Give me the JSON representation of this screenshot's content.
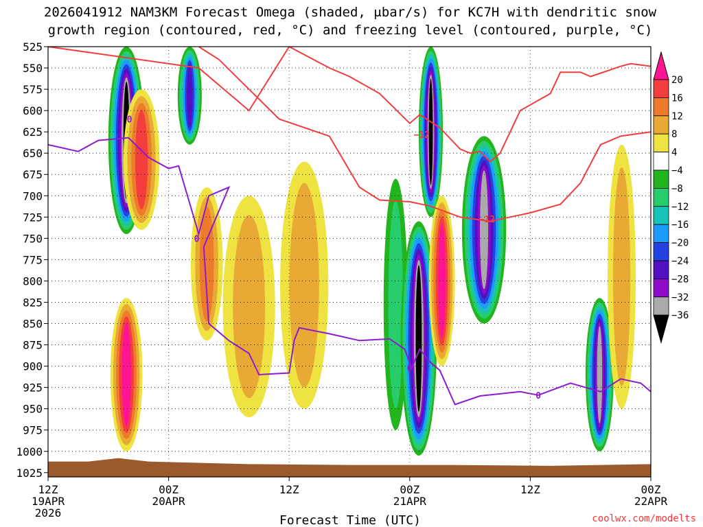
{
  "title_line1": "2026041912 NAM3KM Forecast Omega (shaded, μbar/s) for KC7H with dendritic snow",
  "title_line2": "growth region (contoured, red, °C) and freezing level (contoured, purple, °C)",
  "credit": "coolwx.com/modelts",
  "chart_data": {
    "type": "heatmap",
    "title": "2026041912 NAM3KM Forecast Omega (shaded, μbar/s) for KC7H with dendritic snow growth region (contoured, red, °C) and freezing level (contoured, purple, °C)",
    "xlabel": "Forecast Time (UTC)",
    "ylabel": "",
    "x_range_hours": [
      0,
      60
    ],
    "y_range_mb": [
      525,
      1030
    ],
    "y_scale": "pressure (inverted)",
    "grid": true,
    "x_ticks": [
      {
        "hour": 0,
        "lines": [
          "12Z",
          "19APR",
          "2026"
        ]
      },
      {
        "hour": 12,
        "lines": [
          "00Z",
          "20APR"
        ]
      },
      {
        "hour": 24,
        "lines": [
          "12Z"
        ]
      },
      {
        "hour": 36,
        "lines": [
          "00Z",
          "21APR"
        ]
      },
      {
        "hour": 48,
        "lines": [
          "12Z"
        ]
      },
      {
        "hour": 60,
        "lines": [
          "00Z",
          "22APR"
        ]
      }
    ],
    "y_ticks": [
      525,
      550,
      575,
      600,
      625,
      650,
      675,
      700,
      725,
      750,
      775,
      800,
      825,
      850,
      875,
      900,
      925,
      950,
      975,
      1000,
      1025
    ],
    "colorbar": {
      "labels": [
        "20",
        "16",
        "12",
        "8",
        "4",
        "−4",
        "−8",
        "−12",
        "−16",
        "−20",
        "−24",
        "−28",
        "−32",
        "−36"
      ],
      "colors": [
        "#ff1493",
        "#f43d3d",
        "#ee7b2a",
        "#e8aa35",
        "#efe341",
        "#ffffff",
        "#22b51d",
        "#27cc6b",
        "#19c2b8",
        "#1e9bff",
        "#2342e0",
        "#5210c2",
        "#8f0ac8",
        "#aaaaaa",
        "#000000"
      ]
    },
    "contour_labels": [
      {
        "text": "−12",
        "hour": 37.2,
        "mb": 628,
        "kind": "dgz"
      },
      {
        "text": "−12",
        "hour": 43.7,
        "mb": 727,
        "kind": "dgz"
      },
      {
        "text": "0",
        "hour": 8.1,
        "mb": 610,
        "kind": "freezing"
      },
      {
        "text": "0",
        "hour": 14.8,
        "mb": 750,
        "kind": "freezing"
      },
      {
        "text": "0",
        "hour": 36.0,
        "mb": 902,
        "kind": "freezing"
      },
      {
        "text": "0",
        "hour": 48.8,
        "mb": 934,
        "kind": "freezing"
      }
    ],
    "dgz_upper": [
      [
        0,
        525
      ],
      [
        15,
        550
      ],
      [
        20,
        600
      ],
      [
        24,
        525
      ],
      [
        28,
        550
      ],
      [
        30,
        560
      ],
      [
        33,
        580
      ],
      [
        36,
        615
      ],
      [
        37,
        605
      ],
      [
        39,
        620
      ],
      [
        41,
        645
      ],
      [
        42,
        650
      ],
      [
        43,
        648
      ],
      [
        44,
        660
      ],
      [
        45,
        650
      ],
      [
        47,
        600
      ],
      [
        50,
        580
      ],
      [
        51,
        555
      ],
      [
        53,
        555
      ],
      [
        54,
        560
      ],
      [
        57,
        548
      ],
      [
        58,
        545
      ],
      [
        60,
        548
      ]
    ],
    "dgz_lower": [
      [
        15,
        525
      ],
      [
        17,
        540
      ],
      [
        20,
        575
      ],
      [
        23,
        610
      ],
      [
        28,
        630
      ],
      [
        31,
        690
      ],
      [
        33,
        705
      ],
      [
        36,
        707
      ],
      [
        38,
        712
      ],
      [
        41,
        725
      ],
      [
        44,
        730
      ],
      [
        46,
        725
      ],
      [
        48,
        720
      ],
      [
        51,
        710
      ],
      [
        53,
        685
      ],
      [
        55,
        640
      ],
      [
        57,
        630
      ],
      [
        60,
        625
      ]
    ],
    "freezing_level": [
      [
        0,
        640
      ],
      [
        3,
        648
      ],
      [
        5,
        635
      ],
      [
        8,
        632
      ],
      [
        10,
        655
      ],
      [
        12,
        668
      ],
      [
        13,
        665
      ],
      [
        14,
        705
      ],
      [
        15,
        745
      ],
      [
        16,
        700
      ],
      [
        18,
        690
      ],
      [
        15.5,
        760
      ],
      [
        16,
        850
      ],
      [
        18,
        870
      ],
      [
        20,
        885
      ],
      [
        21,
        910
      ],
      [
        24,
        908
      ],
      [
        24.5,
        870
      ],
      [
        25,
        855
      ],
      [
        28,
        862
      ],
      [
        31,
        870
      ],
      [
        34,
        868
      ],
      [
        35.5,
        880
      ],
      [
        36.2,
        902
      ],
      [
        37,
        880
      ],
      [
        38,
        895
      ],
      [
        39,
        905
      ],
      [
        40.5,
        945
      ],
      [
        43,
        935
      ],
      [
        47,
        930
      ],
      [
        48.8,
        934
      ],
      [
        52,
        920
      ],
      [
        55,
        930
      ],
      [
        57,
        915
      ],
      [
        59,
        920
      ],
      [
        60,
        930
      ]
    ],
    "omega_blobs": [
      {
        "hour": 7.8,
        "mb_top": 525,
        "mb_bot": 745,
        "peak": -36,
        "w": 1.8
      },
      {
        "hour": 9.3,
        "mb_top": 575,
        "mb_bot": 740,
        "peak": 16,
        "w": 1.8
      },
      {
        "hour": 7.8,
        "mb_top": 820,
        "mb_bot": 1000,
        "peak": 20,
        "w": 1.6
      },
      {
        "hour": 14.1,
        "mb_top": 525,
        "mb_bot": 640,
        "peak": -24,
        "w": 1.2
      },
      {
        "hour": 15.8,
        "mb_top": 690,
        "mb_bot": 870,
        "peak": 14,
        "w": 1.6
      },
      {
        "hour": 20.0,
        "mb_top": 700,
        "mb_bot": 960,
        "peak": 10,
        "w": 2.6
      },
      {
        "hour": 25.5,
        "mb_top": 660,
        "mb_bot": 950,
        "peak": 8,
        "w": 2.4
      },
      {
        "hour": 34.6,
        "mb_top": 680,
        "mb_bot": 975,
        "peak": -10,
        "w": 1.2
      },
      {
        "hour": 38.1,
        "mb_top": 525,
        "mb_bot": 725,
        "peak": -36,
        "w": 1.2
      },
      {
        "hour": 36.9,
        "mb_top": 730,
        "mb_bot": 1005,
        "peak": -36,
        "w": 1.8
      },
      {
        "hour": 39.2,
        "mb_top": 700,
        "mb_bot": 900,
        "peak": 20,
        "w": 1.3
      },
      {
        "hour": 43.4,
        "mb_top": 630,
        "mb_bot": 850,
        "peak": -32,
        "w": 2.2
      },
      {
        "hour": 54.9,
        "mb_top": 820,
        "mb_bot": 1000,
        "peak": -34,
        "w": 1.4
      },
      {
        "hour": 57.1,
        "mb_top": 640,
        "mb_bot": 950,
        "peak": 8,
        "w": 1.4
      }
    ],
    "terrain_mb": [
      [
        0,
        1012
      ],
      [
        4,
        1012
      ],
      [
        7,
        1008
      ],
      [
        10,
        1012
      ],
      [
        20,
        1015
      ],
      [
        30,
        1016
      ],
      [
        40,
        1016
      ],
      [
        50,
        1017
      ],
      [
        60,
        1015
      ]
    ]
  }
}
